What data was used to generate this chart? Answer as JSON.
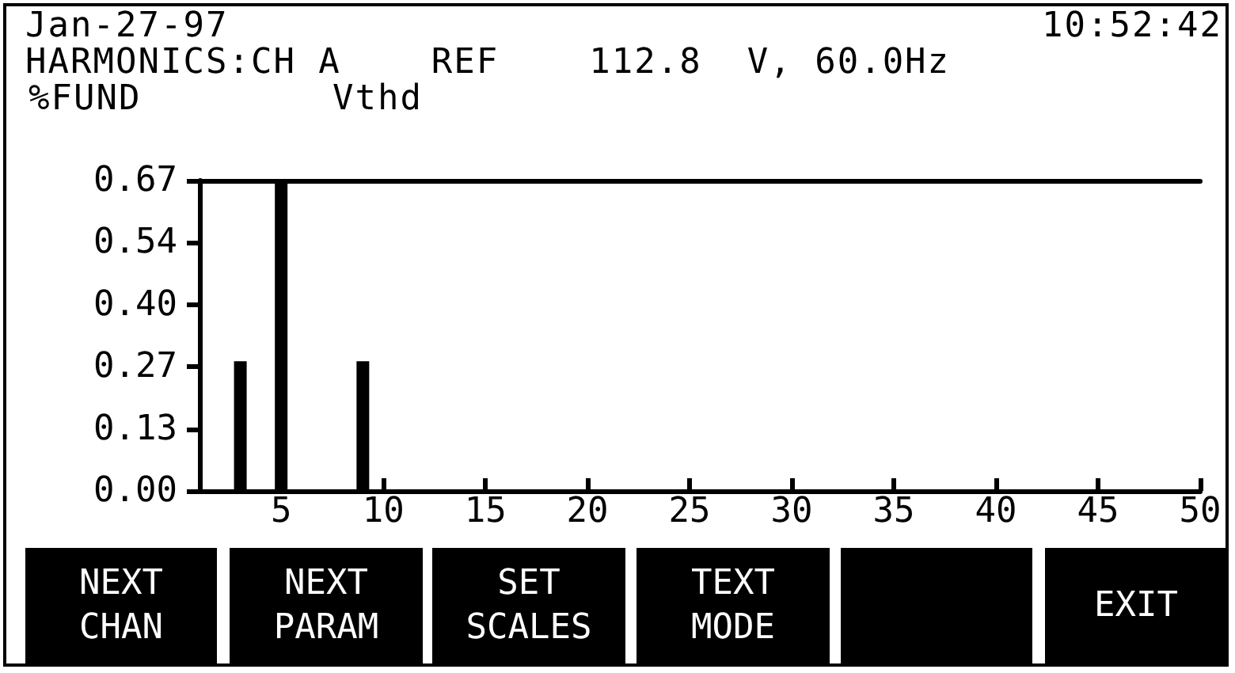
{
  "chart_data": {
    "type": "bar",
    "title": "HARMONICS:CH A    REF    112.8  V, 60.0Hz",
    "subtitle": "Vthd",
    "ylabel": "%FUND",
    "annotations": [
      "Jan-27-97",
      "10:52:42",
      "NEXT\nCHAN",
      "NEXT\nPARAM",
      "SET\nSCALES",
      "TEXT\nMODE",
      "EXIT"
    ],
    "x": [
      3,
      5,
      9
    ],
    "values": [
      0.28,
      0.67,
      0.28
    ],
    "color": "#000000",
    "xlim": [
      1,
      50
    ],
    "xticks": [
      5,
      10,
      15,
      20,
      25,
      30,
      35,
      40,
      45,
      50
    ],
    "ylim": [
      0,
      0.67
    ],
    "yticks": [
      {
        "value": 0,
        "label": "0.00"
      },
      {
        "value": 0.134,
        "label": "0.13"
      },
      {
        "value": 0.268,
        "label": "0.27"
      },
      {
        "value": 0.402,
        "label": "0.40"
      },
      {
        "value": 0.536,
        "label": "0.54"
      },
      {
        "value": 0.67,
        "label": "0.67"
      }
    ],
    "grid": false
  }
}
